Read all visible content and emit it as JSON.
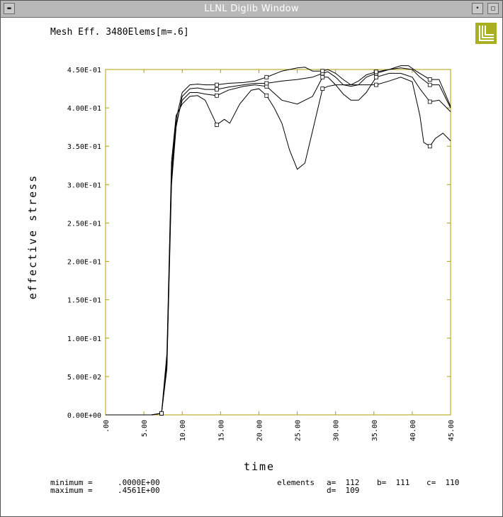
{
  "window": {
    "title": "LLNL Diglib Window"
  },
  "colors": {
    "frame": "#b0a000",
    "logo": "#a8b020",
    "line": "#000000",
    "background": "#ffffff"
  },
  "chart_data": {
    "type": "line",
    "title": "Mesh Eff. 3480Elems[m=.6]",
    "xlabel": "time",
    "ylabel": "effective stress",
    "xlim": [
      0,
      45
    ],
    "ylim": [
      0,
      0.45
    ],
    "grid": false,
    "xticks": [
      0,
      5,
      10,
      15,
      20,
      25,
      30,
      35,
      40,
      45
    ],
    "xtick_labels": [
      ".00",
      "5.00",
      "10.00",
      "15.00",
      "20.00",
      "25.00",
      "30.00",
      "35.00",
      "40.00",
      "45.00"
    ],
    "yticks": [
      0,
      0.05,
      0.1,
      0.15,
      0.2,
      0.25,
      0.3,
      0.35,
      0.4,
      0.45
    ],
    "ytick_labels": [
      "0.00E+00",
      "5.00E-02",
      "1.00E-01",
      "1.50E-01",
      "2.00E-01",
      "2.50E-01",
      "3.00E-01",
      "3.50E-01",
      "4.00E-01",
      "4.50E-01"
    ],
    "series": [
      {
        "name": "a",
        "marker": "a",
        "points": [
          [
            0,
            0
          ],
          [
            6,
            0
          ],
          [
            7.3,
            0.002
          ],
          [
            8,
            0.08
          ],
          [
            8.6,
            0.33
          ],
          [
            9.2,
            0.39
          ],
          [
            10,
            0.405
          ],
          [
            11,
            0.415
          ],
          [
            12,
            0.416
          ],
          [
            13,
            0.41
          ],
          [
            14.5,
            0.378
          ],
          [
            15.5,
            0.385
          ],
          [
            16.2,
            0.38
          ],
          [
            17.5,
            0.405
          ],
          [
            19,
            0.423
          ],
          [
            20,
            0.425
          ],
          [
            21,
            0.416
          ],
          [
            22,
            0.4
          ],
          [
            23,
            0.38
          ],
          [
            24,
            0.345
          ],
          [
            25,
            0.32
          ],
          [
            26,
            0.328
          ],
          [
            27,
            0.37
          ],
          [
            28.3,
            0.425
          ],
          [
            29,
            0.428
          ],
          [
            30,
            0.43
          ],
          [
            32,
            0.43
          ],
          [
            34,
            0.43
          ],
          [
            35.3,
            0.43
          ],
          [
            37,
            0.435
          ],
          [
            38.5,
            0.44
          ],
          [
            40,
            0.434
          ],
          [
            41,
            0.39
          ],
          [
            41.5,
            0.355
          ],
          [
            42.3,
            0.35
          ],
          [
            43,
            0.36
          ],
          [
            44,
            0.367
          ],
          [
            45,
            0.357
          ]
        ]
      },
      {
        "name": "b",
        "marker": "b",
        "points": [
          [
            0,
            0
          ],
          [
            6,
            0
          ],
          [
            7.3,
            0.002
          ],
          [
            8,
            0.065
          ],
          [
            8.6,
            0.31
          ],
          [
            9.2,
            0.38
          ],
          [
            10,
            0.41
          ],
          [
            11,
            0.42
          ],
          [
            12,
            0.42
          ],
          [
            13,
            0.418
          ],
          [
            14.5,
            0.416
          ],
          [
            16,
            0.423
          ],
          [
            18,
            0.428
          ],
          [
            19.5,
            0.43
          ],
          [
            21,
            0.428
          ],
          [
            23,
            0.41
          ],
          [
            25,
            0.405
          ],
          [
            27,
            0.415
          ],
          [
            28.3,
            0.44
          ],
          [
            29,
            0.44
          ],
          [
            30,
            0.43
          ],
          [
            31,
            0.418
          ],
          [
            32,
            0.41
          ],
          [
            33,
            0.41
          ],
          [
            34,
            0.42
          ],
          [
            35.3,
            0.44
          ],
          [
            37,
            0.445
          ],
          [
            38.5,
            0.445
          ],
          [
            40,
            0.44
          ],
          [
            41,
            0.425
          ],
          [
            42.3,
            0.408
          ],
          [
            43.5,
            0.41
          ],
          [
            45,
            0.395
          ]
        ]
      },
      {
        "name": "c",
        "marker": "c",
        "points": [
          [
            0,
            0
          ],
          [
            6,
            0
          ],
          [
            7.3,
            0.002
          ],
          [
            8,
            0.06
          ],
          [
            8.6,
            0.3
          ],
          [
            9.2,
            0.375
          ],
          [
            10,
            0.415
          ],
          [
            11,
            0.425
          ],
          [
            12,
            0.426
          ],
          [
            13,
            0.424
          ],
          [
            14.5,
            0.424
          ],
          [
            16,
            0.427
          ],
          [
            18,
            0.43
          ],
          [
            19.5,
            0.432
          ],
          [
            21,
            0.432
          ],
          [
            23,
            0.435
          ],
          [
            25,
            0.437
          ],
          [
            27,
            0.44
          ],
          [
            28.3,
            0.445
          ],
          [
            29,
            0.447
          ],
          [
            30,
            0.44
          ],
          [
            31,
            0.43
          ],
          [
            32,
            0.428
          ],
          [
            33,
            0.43
          ],
          [
            34,
            0.44
          ],
          [
            35.3,
            0.445
          ],
          [
            37,
            0.45
          ],
          [
            38.5,
            0.452
          ],
          [
            40,
            0.45
          ],
          [
            41,
            0.44
          ],
          [
            42.3,
            0.43
          ],
          [
            43.5,
            0.43
          ],
          [
            45,
            0.4
          ]
        ]
      },
      {
        "name": "d",
        "marker": "d",
        "points": [
          [
            0,
            0
          ],
          [
            6,
            0
          ],
          [
            7.3,
            0.002
          ],
          [
            8,
            0.07
          ],
          [
            8.6,
            0.32
          ],
          [
            9.2,
            0.385
          ],
          [
            10,
            0.42
          ],
          [
            11,
            0.43
          ],
          [
            12,
            0.431
          ],
          [
            13,
            0.43
          ],
          [
            14.5,
            0.43
          ],
          [
            16,
            0.432
          ],
          [
            18,
            0.433
          ],
          [
            19.5,
            0.435
          ],
          [
            21,
            0.44
          ],
          [
            23,
            0.448
          ],
          [
            25,
            0.452
          ],
          [
            26,
            0.453
          ],
          [
            27,
            0.448
          ],
          [
            28.3,
            0.448
          ],
          [
            29,
            0.45
          ],
          [
            30,
            0.445
          ],
          [
            31,
            0.437
          ],
          [
            32,
            0.43
          ],
          [
            33,
            0.435
          ],
          [
            34,
            0.443
          ],
          [
            35.3,
            0.447
          ],
          [
            37,
            0.45
          ],
          [
            38.5,
            0.455
          ],
          [
            39.5,
            0.455
          ],
          [
            40.5,
            0.448
          ],
          [
            42.3,
            0.437
          ],
          [
            43.5,
            0.437
          ],
          [
            45,
            0.402
          ]
        ]
      }
    ],
    "stats": {
      "minimum_label": "minimum =",
      "minimum_value": ".0000E+00",
      "maximum_label": "maximum =",
      "maximum_value": ".4561E+00"
    },
    "elements": {
      "label": "elements",
      "a": "a=  112",
      "b": "b=  111",
      "c": "c=  110",
      "d": "d=  109"
    }
  }
}
